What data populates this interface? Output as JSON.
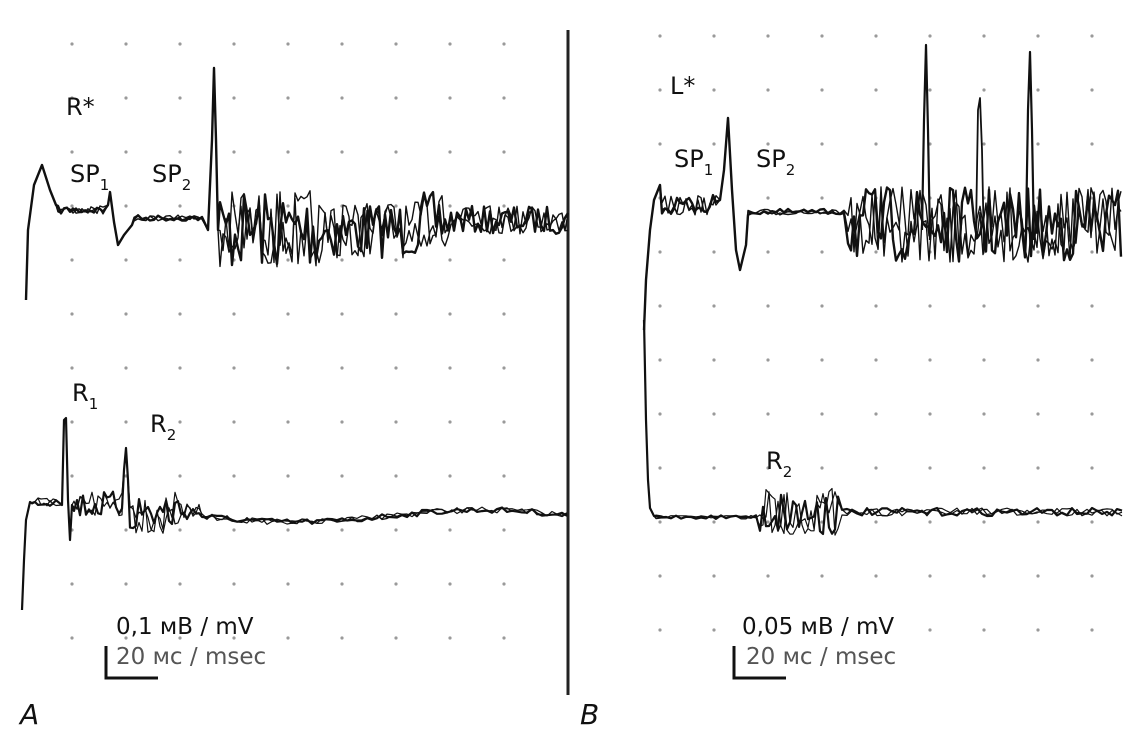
{
  "panels": [
    {
      "letter": "A",
      "top_label": "R*",
      "top_markers": [
        {
          "main": "SP",
          "sub": "1"
        },
        {
          "main": "SP",
          "sub": "2"
        }
      ],
      "bottom_markers": [
        {
          "main": "R",
          "sub": "1"
        },
        {
          "main": "R",
          "sub": "2"
        }
      ],
      "amplitude_scale": "0,1 мВ / mV",
      "time_scale": "20 мс / msec"
    },
    {
      "letter": "B",
      "top_label": "L*",
      "top_markers": [
        {
          "main": "SP",
          "sub": "1"
        },
        {
          "main": "SP",
          "sub": "2"
        }
      ],
      "bottom_markers": [
        {
          "main": "R",
          "sub": "2"
        }
      ],
      "amplitude_scale": "0,05 мВ / mV",
      "time_scale": "20 мс / msec"
    }
  ],
  "colors": {
    "trace": "#111111",
    "grid_dot": "#9a9a9a",
    "background": "#ffffff"
  }
}
